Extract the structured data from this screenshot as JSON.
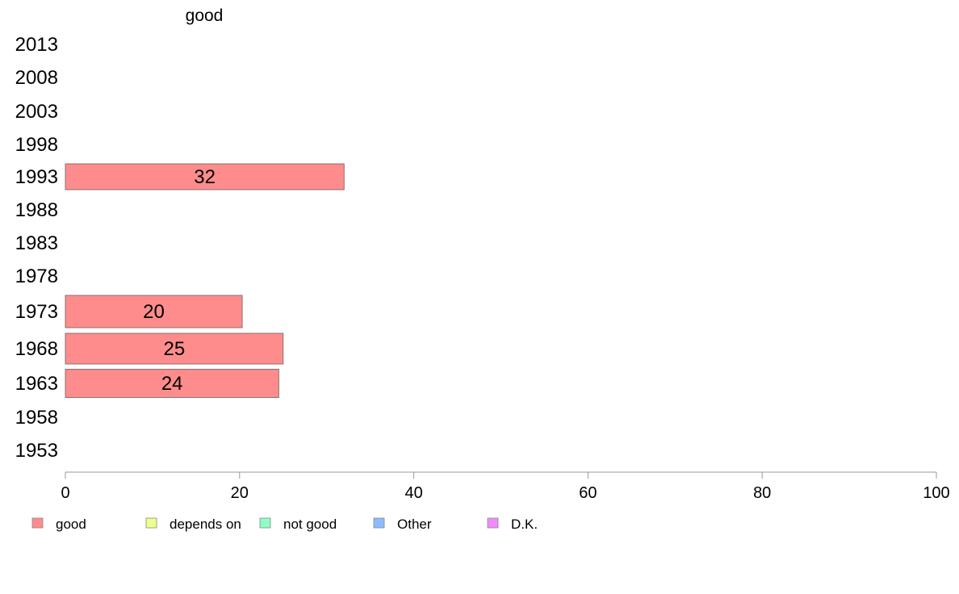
{
  "chart_data": {
    "type": "bar",
    "orientation": "horizontal",
    "title": "good",
    "categories": [
      "2013",
      "2008",
      "2003",
      "1998",
      "1993",
      "1988",
      "1983",
      "1978",
      "1973",
      "1968",
      "1963",
      "1958",
      "1953"
    ],
    "series": [
      {
        "name": "good",
        "color": "#ff8c8c",
        "values": [
          null,
          null,
          null,
          null,
          32,
          null,
          null,
          null,
          20.3,
          25,
          24.5,
          null,
          null
        ],
        "labels": [
          "",
          "",
          "",
          "",
          "32",
          "",
          "",
          "",
          "20",
          "25",
          "24",
          "",
          ""
        ]
      }
    ],
    "xlim": [
      0,
      100
    ],
    "xticks": [
      "0",
      "20",
      "40",
      "60",
      "80",
      "100"
    ],
    "grid": false,
    "legend": {
      "position": "bottom",
      "items": [
        {
          "label": "good",
          "color": "#ff8c8c"
        },
        {
          "label": "depends on",
          "color": "#eeff8c"
        },
        {
          "label": "not good",
          "color": "#8cffc6"
        },
        {
          "label": "Other",
          "color": "#8cbcff"
        },
        {
          "label": "D.K.",
          "color": "#f08cff"
        }
      ]
    }
  }
}
